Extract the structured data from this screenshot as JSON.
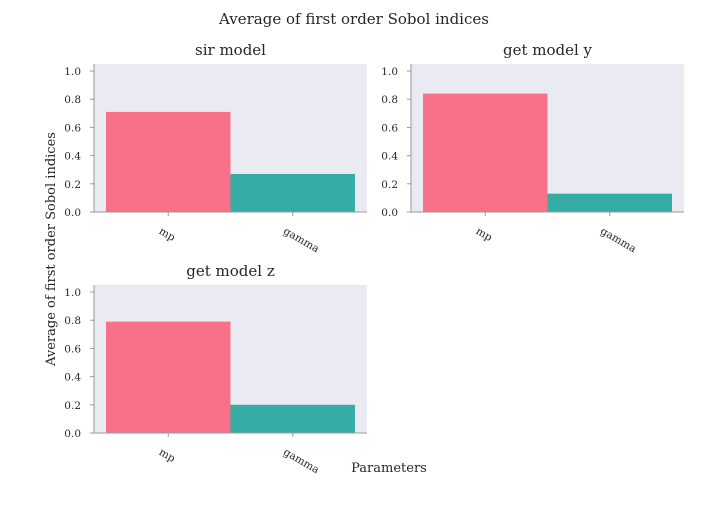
{
  "figure": {
    "title": "Average of first order Sobol indices",
    "ylabel": "Average of first order Sobol indices",
    "xlabel": "Parameters"
  },
  "colors": {
    "plot_bg": "#eaeaf2",
    "axis": "#9a9a9a",
    "text": "#262626"
  },
  "chart_data": [
    {
      "type": "bar",
      "title": "sir model",
      "categories": [
        "mp",
        "gamma"
      ],
      "values": [
        0.71,
        0.27
      ],
      "colors": [
        "#f77189",
        "#36ada4"
      ],
      "ylim": [
        0,
        1.05
      ],
      "yticks": [
        "0.0",
        "0.2",
        "0.4",
        "0.6",
        "0.8",
        "1.0"
      ],
      "grid": false
    },
    {
      "type": "bar",
      "title": "get model y",
      "categories": [
        "mp",
        "gamma"
      ],
      "values": [
        0.84,
        0.13
      ],
      "colors": [
        "#f77189",
        "#36ada4"
      ],
      "ylim": [
        0,
        1.05
      ],
      "yticks": [
        "0.0",
        "0.2",
        "0.4",
        "0.6",
        "0.8",
        "1.0"
      ],
      "grid": false
    },
    {
      "type": "bar",
      "title": "get model z",
      "categories": [
        "mp",
        "gamma"
      ],
      "values": [
        0.79,
        0.2
      ],
      "colors": [
        "#f77189",
        "#36ada4"
      ],
      "ylim": [
        0,
        1.05
      ],
      "yticks": [
        "0.0",
        "0.2",
        "0.4",
        "0.6",
        "0.8",
        "1.0"
      ],
      "grid": false
    }
  ]
}
